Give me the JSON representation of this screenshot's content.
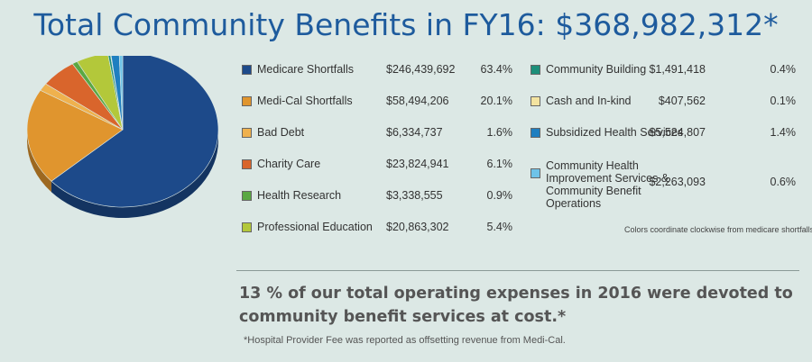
{
  "title": "Total Community Benefits in FY16: $368,982,312*",
  "chart_data": {
    "type": "pie",
    "title": "Total Community Benefits in FY16: $368,982,312*",
    "slices": [
      {
        "label": "Medicare Shortfalls",
        "amount": "$246,439,692",
        "percent": "63.4%",
        "value": 63.4,
        "color": "#1d4a8a"
      },
      {
        "label": "Medi-Cal Shortfalls",
        "amount": "$58,494,206",
        "percent": "20.1%",
        "value": 20.1,
        "color": "#e0952e"
      },
      {
        "label": "Bad Debt",
        "amount": "$6,334,737",
        "percent": "1.6%",
        "value": 1.6,
        "color": "#efb14e"
      },
      {
        "label": "Charity Care",
        "amount": "$23,824,941",
        "percent": "6.1%",
        "value": 6.1,
        "color": "#d9652c"
      },
      {
        "label": "Health Research",
        "amount": "$3,338,555",
        "percent": "0.9%",
        "value": 0.9,
        "color": "#5aa843"
      },
      {
        "label": "Professional Education",
        "amount": "$20,863,302",
        "percent": "5.4%",
        "value": 5.4,
        "color": "#b3c83a"
      },
      {
        "label": "Community Building",
        "amount": "$1,491,418",
        "percent": "0.4%",
        "value": 0.4,
        "color": "#1d8f7a"
      },
      {
        "label": "Cash and In-kind",
        "amount": "$407,562",
        "percent": "0.1%",
        "value": 0.1,
        "color": "#f3e3a0"
      },
      {
        "label": "Subsidized Health Services",
        "amount": "$5,524,807",
        "percent": "1.4%",
        "value": 1.4,
        "color": "#1f7fc0"
      },
      {
        "label": "Community Health Improvement Services & Community Benefit Operations",
        "amount": "$2,263,093",
        "percent": "0.6%",
        "value": 0.6,
        "color": "#6ec3e8"
      }
    ]
  },
  "legend_note": "Colors coordinate clockwise from medicare shortfalls.",
  "statement": "13 % of our total operating expenses in 2016 were devoted to community benefit services at cost.*",
  "footnote": "*Hospital Provider Fee was reported as offsetting revenue from Medi-Cal."
}
